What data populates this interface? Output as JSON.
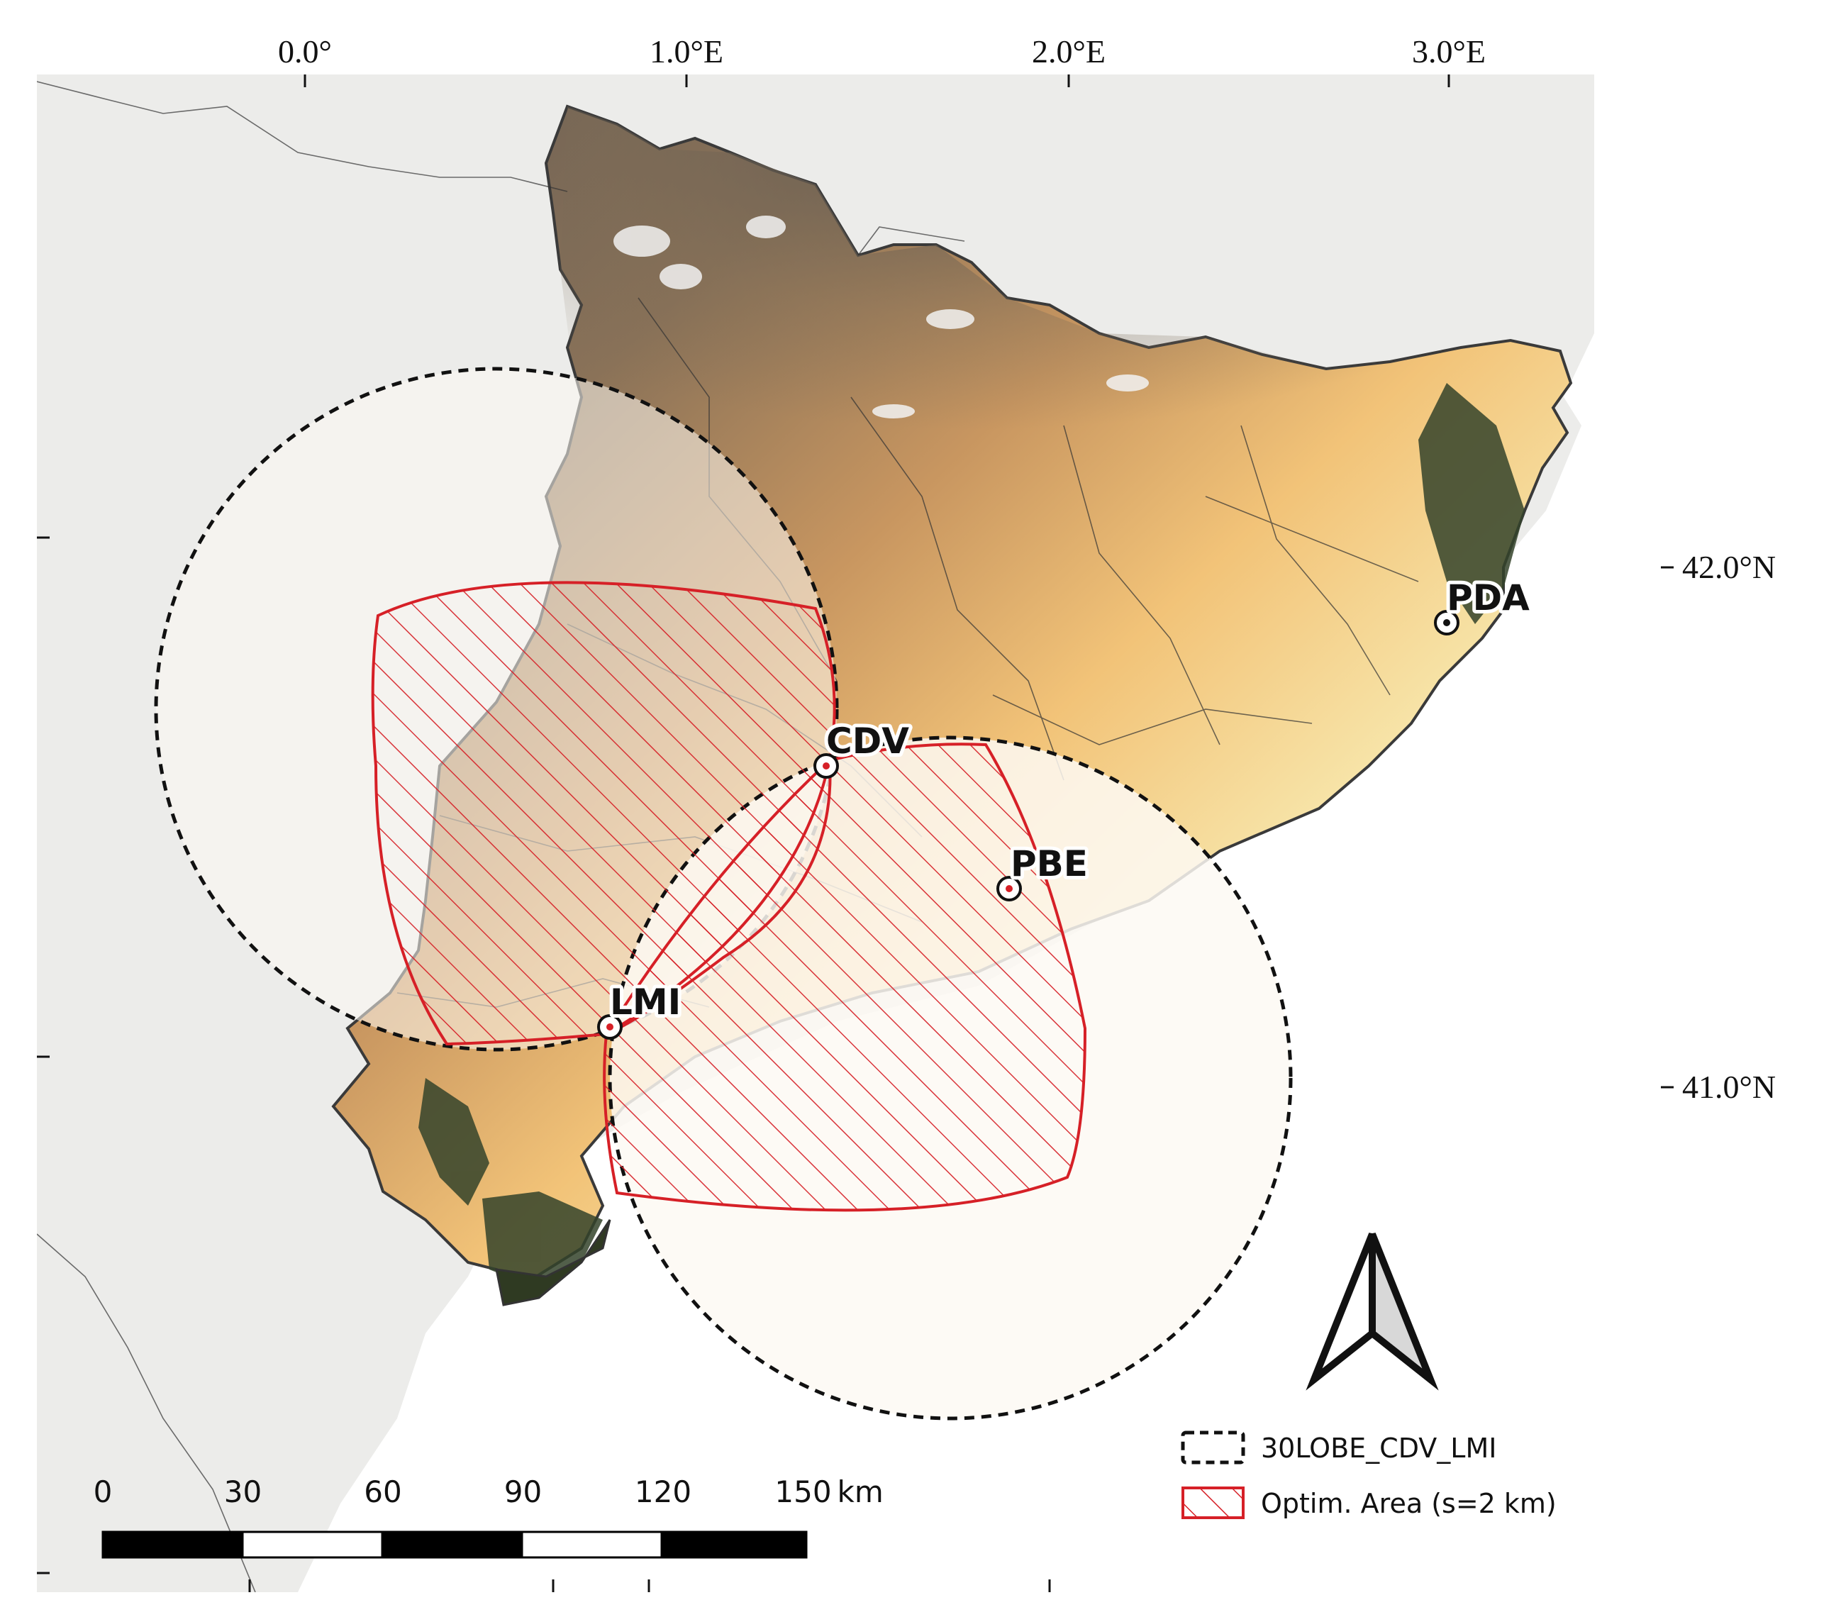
{
  "axes": {
    "longitude_ticks": [
      "0.0°",
      "1.0°E",
      "2.0°E",
      "3.0°E"
    ],
    "latitude_ticks": [
      "42.0°N",
      "41.0°N"
    ]
  },
  "stations": [
    {
      "code": "PDA"
    },
    {
      "code": "CDV"
    },
    {
      "code": "PBE"
    },
    {
      "code": "LMI"
    }
  ],
  "scale_bar": {
    "labels": [
      "0",
      "30",
      "60",
      "90",
      "120",
      "150"
    ],
    "unit": "km"
  },
  "legend": {
    "items": [
      {
        "label": "30LOBE_CDV_LMI",
        "style": "dashed-circle"
      },
      {
        "label": "Optim. Area (s=2 km)",
        "style": "red-hatch"
      }
    ]
  },
  "north_arrow": {
    "icon": "north-arrow-icon"
  },
  "colors": {
    "land_background": "#ececea",
    "sea": "#ffffff",
    "lobe_fill": "#fdf9f3",
    "optim_area": "#d62027",
    "elevation_low": "#2f3a22",
    "elevation_mid": "#f0c070",
    "elevation_high": "#6e6358",
    "peaks": "#f2f2f2"
  }
}
